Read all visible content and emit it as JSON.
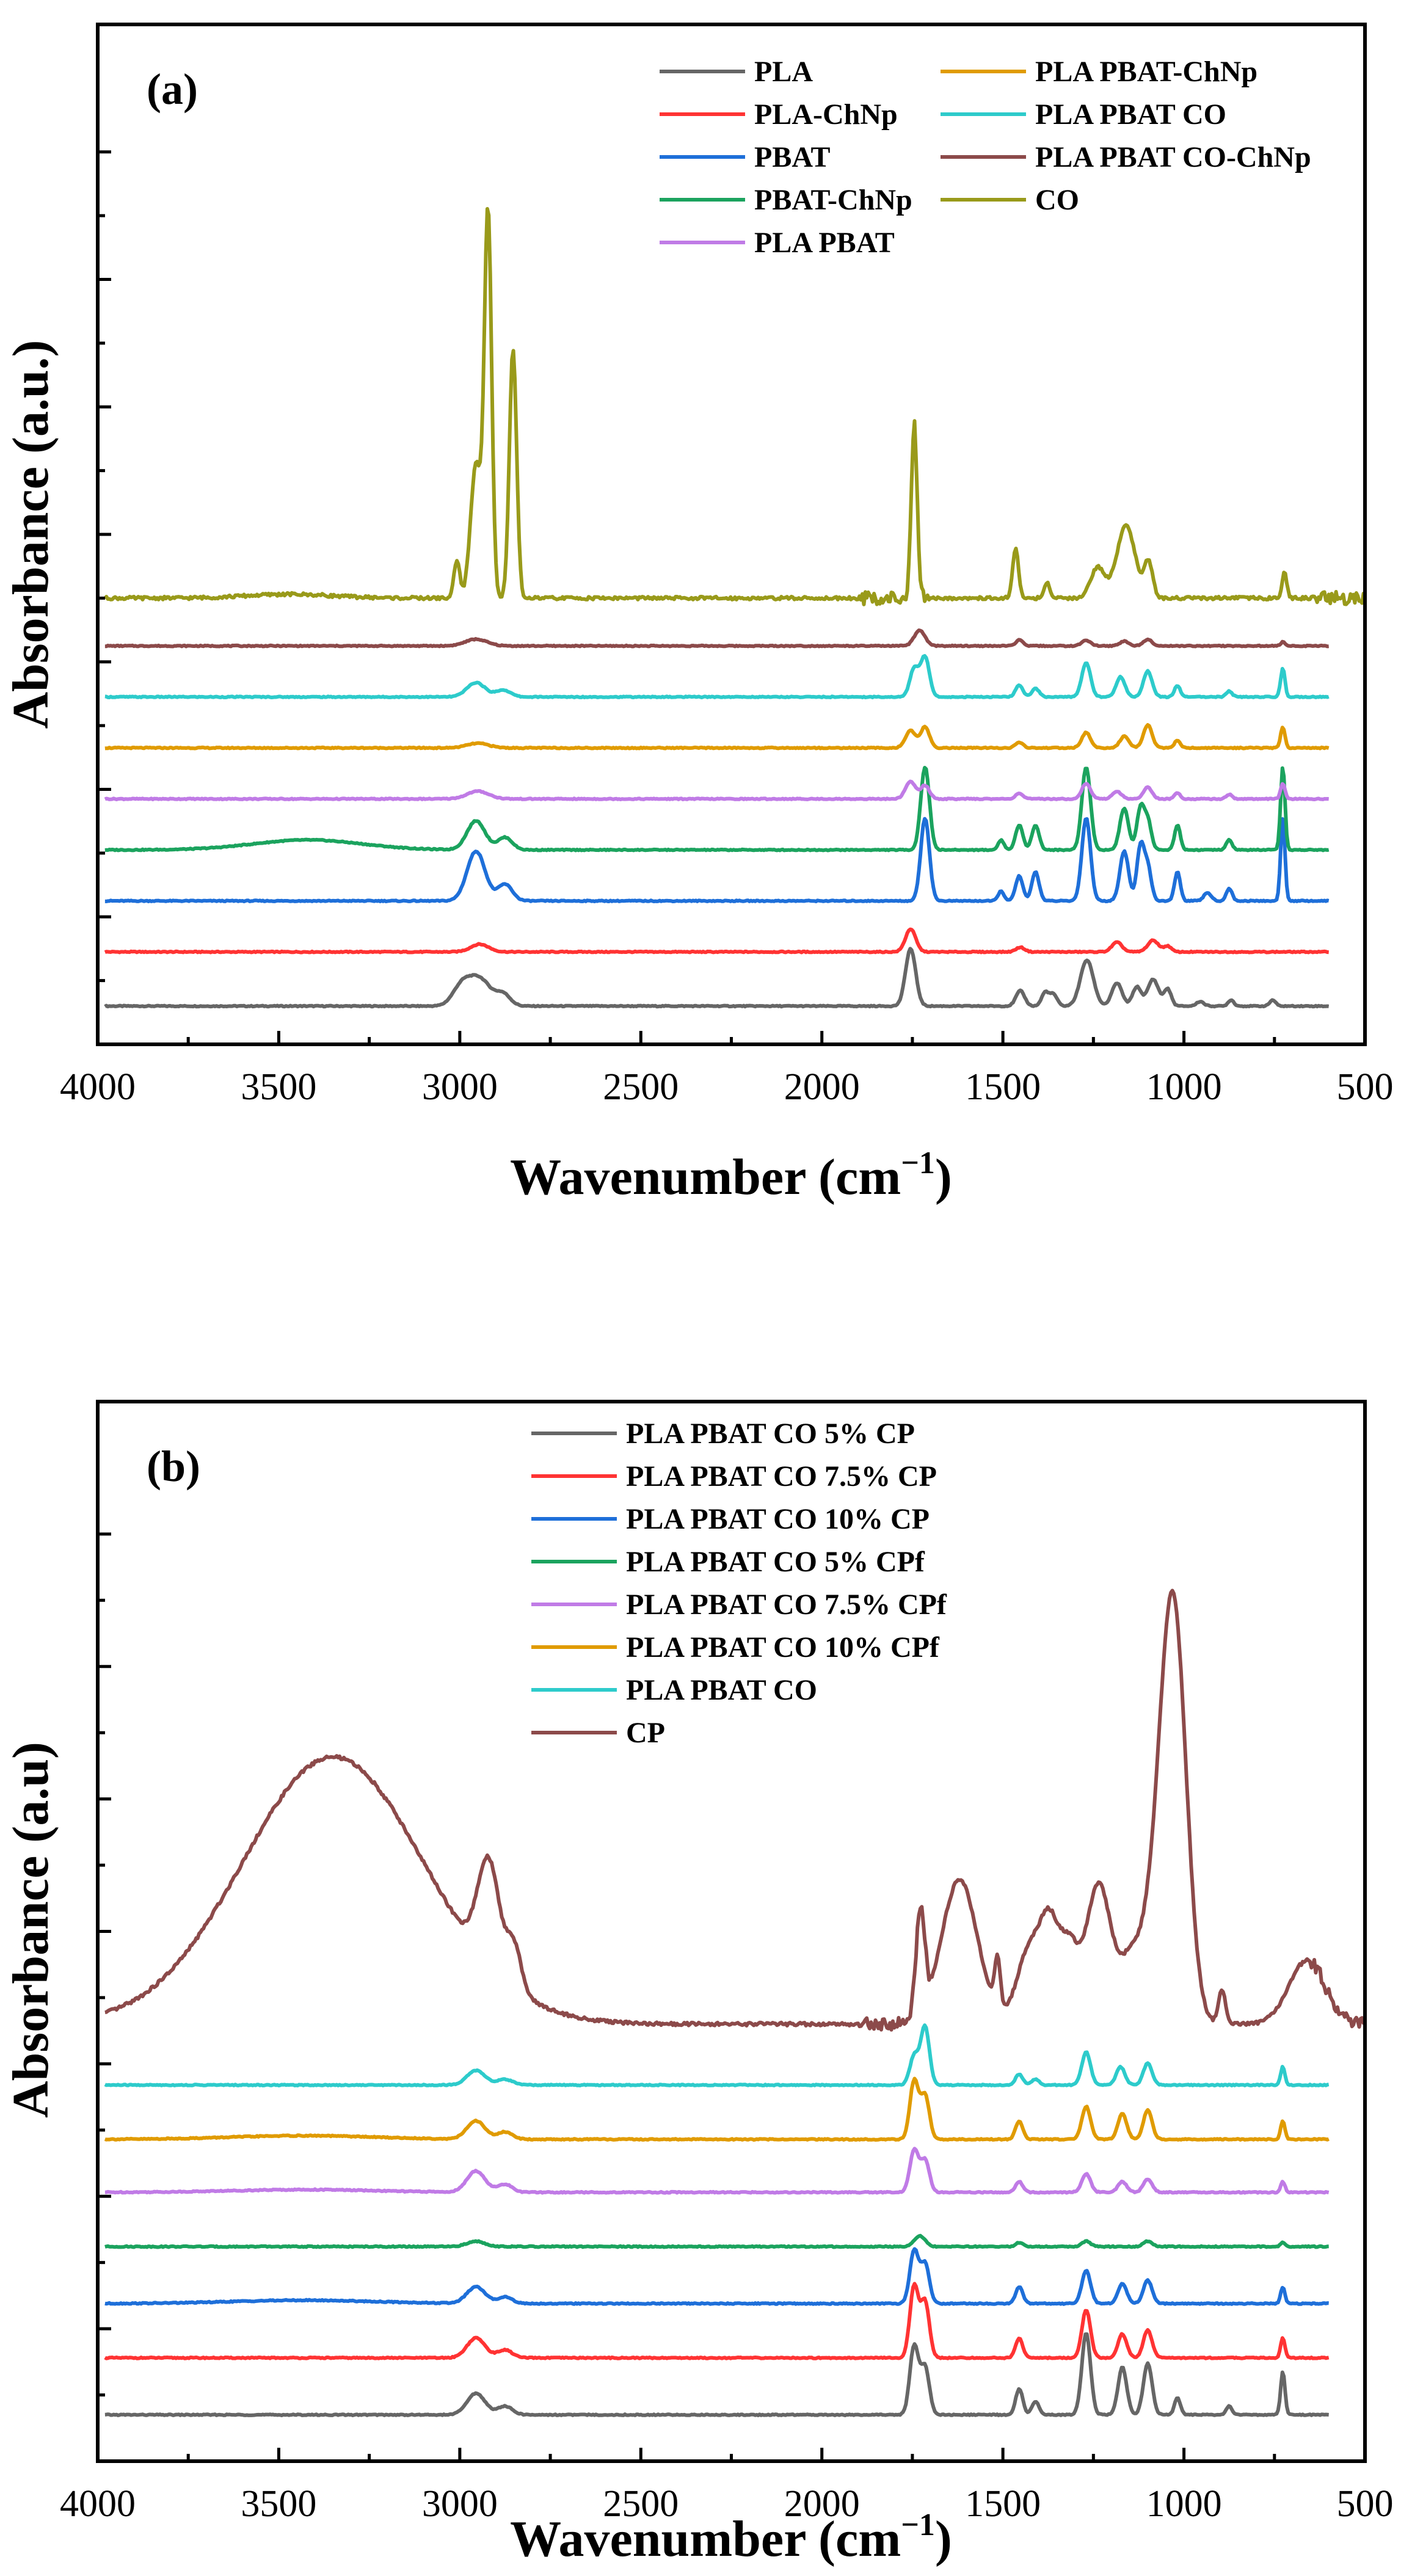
{
  "chart_data": [
    {
      "type": "line",
      "panel_label": "(a)",
      "xlabel": "Wavenumber (cm",
      "xlabel_sup": "−1",
      "xlabel_close": ")",
      "ylabel": "Absorbance (a.u.)",
      "xlim": [
        4000,
        500
      ],
      "x_reversed": true,
      "xticks": [
        4000,
        3500,
        3000,
        2500,
        2000,
        1500,
        1000,
        500
      ],
      "xtick_labels": [
        "4000",
        "3500",
        "3000",
        "2500",
        "2000",
        "1500",
        "1000",
        "500"
      ],
      "ylim": [
        0,
        8
      ],
      "yticks": [
        1,
        2,
        3,
        4,
        5,
        6,
        7
      ],
      "grid": false,
      "legend_position": "top-right",
      "series": [
        {
          "name": "PLA",
          "color": "#666666",
          "baseline": 0.3,
          "scale": 0.6,
          "peaks": [
            [
              2995,
              0.25,
              25
            ],
            [
              2945,
              0.35,
              30
            ],
            [
              2880,
              0.15,
              20
            ],
            [
              1755,
              0.75,
              14
            ],
            [
              1452,
              0.2,
              12
            ],
            [
              1383,
              0.18,
              10
            ],
            [
              1360,
              0.15,
              10
            ],
            [
              1268,
              0.6,
              18
            ],
            [
              1185,
              0.3,
              14
            ],
            [
              1130,
              0.25,
              12
            ],
            [
              1085,
              0.35,
              15
            ],
            [
              1045,
              0.22,
              10
            ],
            [
              955,
              0.06,
              10
            ],
            [
              870,
              0.08,
              8
            ],
            [
              755,
              0.08,
              8
            ]
          ]
        },
        {
          "name": "PLA-ChNp",
          "color": "#FF3333",
          "baseline": 0.725,
          "scale": 0.3,
          "peaks": [
            [
              2945,
              0.2,
              25
            ],
            [
              1755,
              0.6,
              14
            ],
            [
              1452,
              0.12,
              12
            ],
            [
              1185,
              0.25,
              14
            ],
            [
              1085,
              0.3,
              15
            ],
            [
              1045,
              0.15,
              10
            ]
          ]
        },
        {
          "name": "PBAT",
          "color": "#1E6FD9",
          "baseline": 1.125,
          "scale": 0.65,
          "peaks": [
            [
              2955,
              0.6,
              25
            ],
            [
              2875,
              0.2,
              20
            ],
            [
              1715,
              1.0,
              12
            ],
            [
              1505,
              0.12,
              8
            ],
            [
              1455,
              0.3,
              10
            ],
            [
              1410,
              0.35,
              10
            ],
            [
              1270,
              1.0,
              12
            ],
            [
              1165,
              0.6,
              12
            ],
            [
              1120,
              0.65,
              10
            ],
            [
              1100,
              0.4,
              10
            ],
            [
              1018,
              0.35,
              8
            ],
            [
              935,
              0.1,
              10
            ],
            [
              875,
              0.15,
              8
            ],
            [
              727,
              1.0,
              6
            ]
          ]
        },
        {
          "name": "PBAT-ChNp",
          "color": "#1BA35E",
          "baseline": 1.525,
          "scale": 0.65,
          "peaks": [
            [
              3420,
              0.12,
              150
            ],
            [
              2955,
              0.35,
              25
            ],
            [
              2875,
              0.15,
              20
            ],
            [
              1715,
              1.0,
              12
            ],
            [
              1505,
              0.12,
              8
            ],
            [
              1455,
              0.3,
              10
            ],
            [
              1410,
              0.3,
              10
            ],
            [
              1270,
              1.0,
              12
            ],
            [
              1165,
              0.5,
              12
            ],
            [
              1120,
              0.5,
              10
            ],
            [
              1100,
              0.35,
              10
            ],
            [
              1018,
              0.3,
              8
            ],
            [
              875,
              0.12,
              8
            ],
            [
              727,
              1.0,
              6
            ]
          ]
        },
        {
          "name": "PLA PBAT",
          "color": "#C07BE6",
          "baseline": 1.925,
          "scale": 0.3,
          "peaks": [
            [
              2950,
              0.2,
              30
            ],
            [
              1755,
              0.45,
              14
            ],
            [
              1715,
              0.35,
              12
            ],
            [
              1455,
              0.15,
              10
            ],
            [
              1270,
              0.4,
              12
            ],
            [
              1185,
              0.2,
              12
            ],
            [
              1100,
              0.3,
              12
            ],
            [
              1018,
              0.15,
              8
            ],
            [
              875,
              0.12,
              8
            ],
            [
              727,
              0.4,
              6
            ]
          ]
        },
        {
          "name": "PLA PBAT-ChNp",
          "color": "#E09B00",
          "baseline": 2.325,
          "scale": 0.3,
          "peaks": [
            [
              2950,
              0.12,
              30
            ],
            [
              1755,
              0.45,
              14
            ],
            [
              1715,
              0.55,
              12
            ],
            [
              1455,
              0.15,
              10
            ],
            [
              1270,
              0.4,
              12
            ],
            [
              1165,
              0.3,
              12
            ],
            [
              1100,
              0.6,
              12
            ],
            [
              1018,
              0.2,
              8
            ],
            [
              727,
              0.55,
              6
            ]
          ]
        },
        {
          "name": "PLA PBAT CO",
          "color": "#2DCBCB",
          "baseline": 2.725,
          "scale": 0.45,
          "peaks": [
            [
              2955,
              0.25,
              25
            ],
            [
              2880,
              0.12,
              20
            ],
            [
              1745,
              0.5,
              12
            ],
            [
              1715,
              0.7,
              12
            ],
            [
              1455,
              0.2,
              10
            ],
            [
              1410,
              0.15,
              10
            ],
            [
              1270,
              0.6,
              12
            ],
            [
              1175,
              0.35,
              12
            ],
            [
              1100,
              0.45,
              12
            ],
            [
              1018,
              0.2,
              8
            ],
            [
              875,
              0.1,
              8
            ],
            [
              727,
              0.5,
              6
            ]
          ]
        },
        {
          "name": "PLA PBAT CO-ChNp",
          "color": "#8C4A4A",
          "baseline": 3.125,
          "scale": 0.15,
          "peaks": [
            [
              2955,
              0.35,
              30
            ],
            [
              1730,
              0.8,
              15
            ],
            [
              1455,
              0.3,
              10
            ],
            [
              1270,
              0.3,
              12
            ],
            [
              1165,
              0.25,
              12
            ],
            [
              1100,
              0.35,
              12
            ],
            [
              727,
              0.2,
              6
            ]
          ]
        },
        {
          "name": "CO",
          "color": "#999A1A",
          "baseline": 3.5,
          "scale": 3.0,
          "peaks": [
            [
              3470,
              0.01,
              120
            ],
            [
              3008,
              0.1,
              8
            ],
            [
              2955,
              0.35,
              15
            ],
            [
              2922,
              1.0,
              10
            ],
            [
              2853,
              0.65,
              10
            ],
            [
              1745,
              0.45,
              8
            ],
            [
              1465,
              0.13,
              8
            ],
            [
              1378,
              0.04,
              7
            ],
            [
              1238,
              0.08,
              20
            ],
            [
              1160,
              0.19,
              25
            ],
            [
              1098,
              0.09,
              12
            ],
            [
              722,
              0.07,
              6
            ]
          ]
        }
      ]
    },
    {
      "type": "line",
      "panel_label": "(b)",
      "xlabel": "Wavenumber (cm",
      "xlabel_sup": "−1",
      "xlabel_close": ")",
      "ylabel": "Absorbance (a.u)",
      "xlim": [
        4000,
        500
      ],
      "x_reversed": true,
      "xticks": [
        4000,
        3500,
        3000,
        2500,
        2000,
        1500,
        1000,
        500
      ],
      "xtick_labels": [
        "4000",
        "3500",
        "3000",
        "2500",
        "2000",
        "1500",
        "1000",
        "500"
      ],
      "ylim": [
        0,
        8
      ],
      "yticks": [
        1,
        2,
        3,
        4,
        5,
        6,
        7
      ],
      "grid": false,
      "legend_position": "top-left",
      "series": [
        {
          "name": "PLA PBAT CO 5% CP",
          "color": "#666666",
          "baseline": 0.35,
          "scale": 0.65,
          "peaks": [
            [
              2955,
              0.25,
              25
            ],
            [
              2875,
              0.1,
              20
            ],
            [
              1745,
              0.8,
              12
            ],
            [
              1715,
              0.55,
              12
            ],
            [
              1455,
              0.3,
              10
            ],
            [
              1410,
              0.15,
              10
            ],
            [
              1270,
              0.95,
              12
            ],
            [
              1170,
              0.55,
              12
            ],
            [
              1100,
              0.6,
              12
            ],
            [
              1018,
              0.2,
              8
            ],
            [
              875,
              0.1,
              8
            ],
            [
              727,
              0.5,
              6
            ]
          ]
        },
        {
          "name": "PLA PBAT CO 7.5% CP",
          "color": "#FF3333",
          "baseline": 0.78,
          "scale": 0.6,
          "peaks": [
            [
              2955,
              0.25,
              25
            ],
            [
              2875,
              0.1,
              20
            ],
            [
              1745,
              0.9,
              12
            ],
            [
              1715,
              0.7,
              12
            ],
            [
              1455,
              0.25,
              10
            ],
            [
              1270,
              0.6,
              12
            ],
            [
              1170,
              0.3,
              12
            ],
            [
              1100,
              0.35,
              12
            ],
            [
              727,
              0.25,
              6
            ]
          ]
        },
        {
          "name": "PLA PBAT CO 10% CP",
          "color": "#1E6FD9",
          "baseline": 1.19,
          "scale": 0.5,
          "peaks": [
            [
              3430,
              0.05,
              200
            ],
            [
              2955,
              0.25,
              25
            ],
            [
              2875,
              0.1,
              20
            ],
            [
              1745,
              0.8,
              12
            ],
            [
              1715,
              0.6,
              12
            ],
            [
              1455,
              0.25,
              10
            ],
            [
              1270,
              0.5,
              12
            ],
            [
              1170,
              0.3,
              12
            ],
            [
              1100,
              0.35,
              12
            ],
            [
              727,
              0.25,
              6
            ]
          ]
        },
        {
          "name": "PLA PBAT CO 5% CPf",
          "color": "#1BA35E",
          "baseline": 1.62,
          "scale": 0.1,
          "peaks": [
            [
              2955,
              0.4,
              25
            ],
            [
              1730,
              0.8,
              15
            ],
            [
              1455,
              0.3,
              10
            ],
            [
              1270,
              0.4,
              12
            ],
            [
              1100,
              0.4,
              12
            ],
            [
              727,
              0.3,
              6
            ]
          ]
        },
        {
          "name": "PLA PBAT CO 7.5% CPf",
          "color": "#C07BE6",
          "baseline": 2.03,
          "scale": 0.4,
          "peaks": [
            [
              3430,
              0.05,
              200
            ],
            [
              2955,
              0.4,
              25
            ],
            [
              2875,
              0.15,
              20
            ],
            [
              1745,
              0.8,
              12
            ],
            [
              1715,
              0.6,
              12
            ],
            [
              1455,
              0.2,
              10
            ],
            [
              1270,
              0.35,
              12
            ],
            [
              1170,
              0.2,
              12
            ],
            [
              1100,
              0.25,
              12
            ],
            [
              727,
              0.2,
              6
            ]
          ]
        },
        {
          "name": "PLA PBAT CO 10% CPf",
          "color": "#E09B00",
          "baseline": 2.43,
          "scale": 0.55,
          "peaks": [
            [
              3430,
              0.05,
              200
            ],
            [
              2955,
              0.25,
              25
            ],
            [
              2875,
              0.1,
              20
            ],
            [
              1745,
              0.8,
              12
            ],
            [
              1715,
              0.6,
              12
            ],
            [
              1455,
              0.25,
              10
            ],
            [
              1270,
              0.45,
              12
            ],
            [
              1170,
              0.35,
              12
            ],
            [
              1100,
              0.4,
              12
            ],
            [
              727,
              0.25,
              6
            ]
          ]
        },
        {
          "name": "PLA PBAT CO",
          "color": "#2DCBCB",
          "baseline": 2.84,
          "scale": 0.55,
          "peaks": [
            [
              2955,
              0.2,
              25
            ],
            [
              2875,
              0.08,
              20
            ],
            [
              1745,
              0.4,
              12
            ],
            [
              1715,
              0.8,
              12
            ],
            [
              1455,
              0.15,
              10
            ],
            [
              1410,
              0.08,
              10
            ],
            [
              1270,
              0.45,
              12
            ],
            [
              1175,
              0.25,
              12
            ],
            [
              1100,
              0.3,
              12
            ],
            [
              727,
              0.25,
              6
            ]
          ]
        },
        {
          "name": "CP",
          "color": "#8C4A4A",
          "baseline": 3.3,
          "scale": 3.2,
          "peaks": [
            [
              3350,
              0.63,
              250
            ],
            [
              2920,
              0.25,
              30
            ],
            [
              2850,
              0.1,
              20
            ],
            [
              1728,
              0.25,
              12
            ],
            [
              1620,
              0.34,
              50
            ],
            [
              1515,
              0.12,
              8
            ],
            [
              1425,
              0.18,
              35
            ],
            [
              1370,
              0.2,
              25
            ],
            [
              1318,
              0.17,
              25
            ],
            [
              1236,
              0.33,
              35
            ],
            [
              1150,
              0.12,
              30
            ],
            [
              1027,
              0.89,
              35
            ],
            [
              1075,
              0.25,
              40
            ],
            [
              895,
              0.08,
              10
            ],
            [
              660,
              0.15,
              50
            ]
          ]
        }
      ]
    }
  ]
}
